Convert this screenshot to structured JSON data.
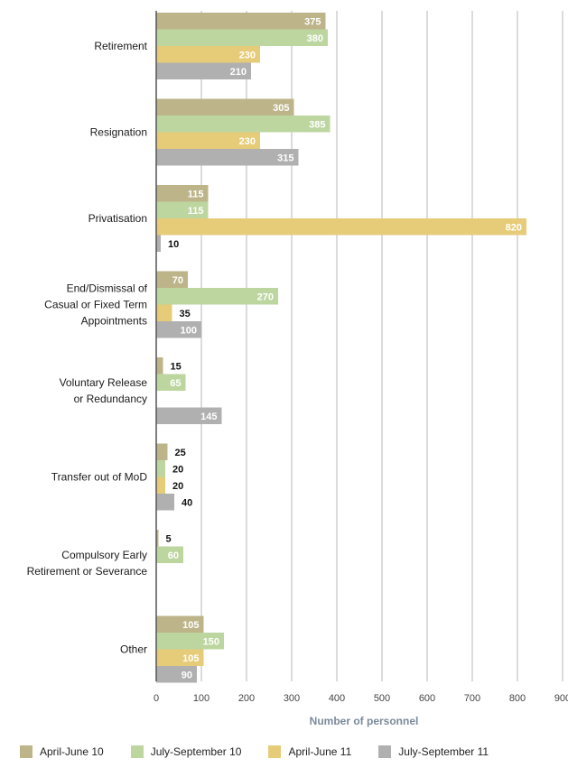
{
  "chart_data": {
    "type": "bar",
    "orientation": "horizontal",
    "title": "",
    "xlabel": "Number of personnel",
    "ylabel": "",
    "xlim": [
      0,
      900
    ],
    "xticks": [
      0,
      100,
      200,
      300,
      400,
      500,
      600,
      700,
      800,
      900
    ],
    "grid": true,
    "legend_position": "bottom",
    "categories": [
      [
        "Retirement"
      ],
      [
        "Resignation"
      ],
      [
        "Privatisation"
      ],
      [
        "End/Dismissal of",
        "Casual or Fixed Term",
        "Appointments"
      ],
      [
        "Voluntary Release",
        "or Redundancy"
      ],
      [
        "Transfer out of MoD"
      ],
      [
        "Compulsory Early",
        "Retirement or Severance"
      ],
      [
        "Other"
      ]
    ],
    "series": [
      {
        "name": "April-June 10",
        "color": "#bdb48a",
        "values": [
          375,
          305,
          115,
          70,
          15,
          25,
          5,
          105
        ]
      },
      {
        "name": "July-September 10",
        "color": "#bdd6a0",
        "values": [
          380,
          385,
          115,
          270,
          65,
          20,
          60,
          150
        ]
      },
      {
        "name": "April-June 11",
        "color": "#e6cb78",
        "values": [
          230,
          230,
          820,
          35,
          null,
          20,
          null,
          105
        ]
      },
      {
        "name": "July-September 11",
        "color": "#b0b0b0",
        "values": [
          210,
          315,
          10,
          100,
          145,
          40,
          null,
          90
        ]
      }
    ]
  }
}
